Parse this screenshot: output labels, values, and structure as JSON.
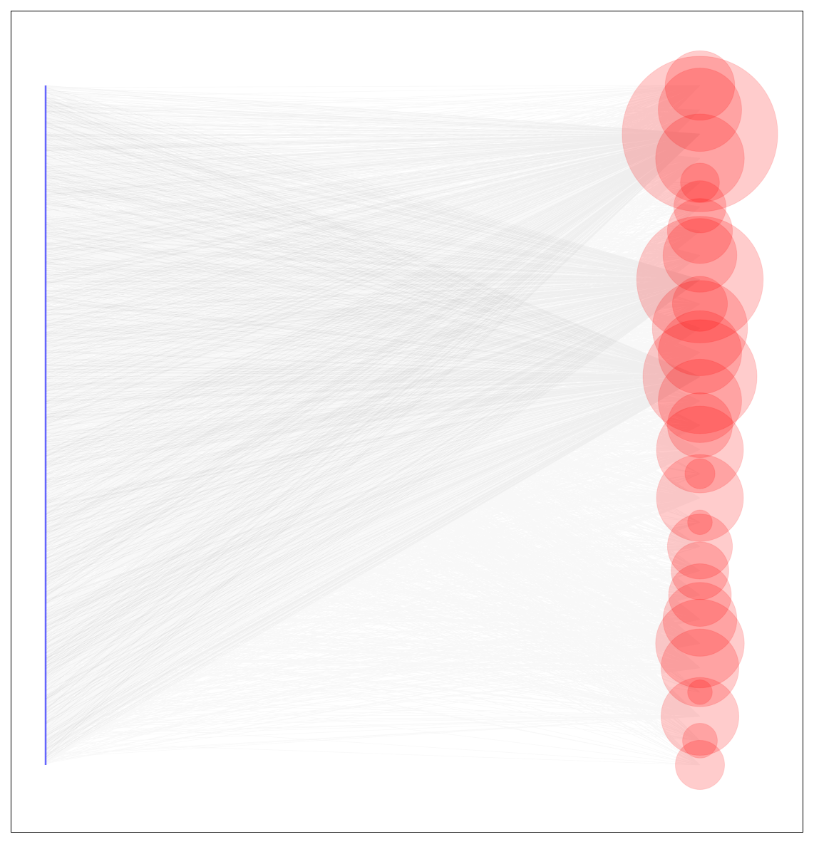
{
  "diagram": {
    "type": "bipartite-network",
    "colors": {
      "left_nodes": "#0000ff",
      "right_nodes": "#ff0000",
      "edges": "#000000",
      "frame": "#000000",
      "background": "#ffffff"
    },
    "left_group": {
      "node_count": 700
    },
    "right_group": {
      "nodes": [
        {
          "id": "r1",
          "weight": 1.6
        },
        {
          "id": "r2",
          "weight": 2.3
        },
        {
          "id": "r3",
          "weight": 8.0
        },
        {
          "id": "r4",
          "weight": 2.6
        },
        {
          "id": "r5",
          "weight": 0.5
        },
        {
          "id": "r6",
          "weight": 0.9
        },
        {
          "id": "r7",
          "weight": 1.4
        },
        {
          "id": "r8",
          "weight": 1.8
        },
        {
          "id": "r9",
          "weight": 5.3
        },
        {
          "id": "r10",
          "weight": 1.0
        },
        {
          "id": "r11",
          "weight": 3.0
        },
        {
          "id": "r12",
          "weight": 2.3
        },
        {
          "id": "r13",
          "weight": 4.3
        },
        {
          "id": "r14",
          "weight": 2.3
        },
        {
          "id": "r15",
          "weight": 1.4
        },
        {
          "id": "r16",
          "weight": 2.5
        },
        {
          "id": "r17",
          "weight": 0.3
        },
        {
          "id": "r18",
          "weight": 2.5
        },
        {
          "id": "r19",
          "weight": 0.2
        },
        {
          "id": "r20",
          "weight": 1.4
        },
        {
          "id": "r21",
          "weight": 1.1
        },
        {
          "id": "r22",
          "weight": 1.3
        },
        {
          "id": "r23",
          "weight": 1.8
        },
        {
          "id": "r24",
          "weight": 2.6
        },
        {
          "id": "r25",
          "weight": 2.0
        },
        {
          "id": "r26",
          "weight": 0.2
        },
        {
          "id": "r27",
          "weight": 2.0
        },
        {
          "id": "r28",
          "weight": 0.4
        },
        {
          "id": "r29",
          "weight": 0.8
        }
      ]
    }
  }
}
